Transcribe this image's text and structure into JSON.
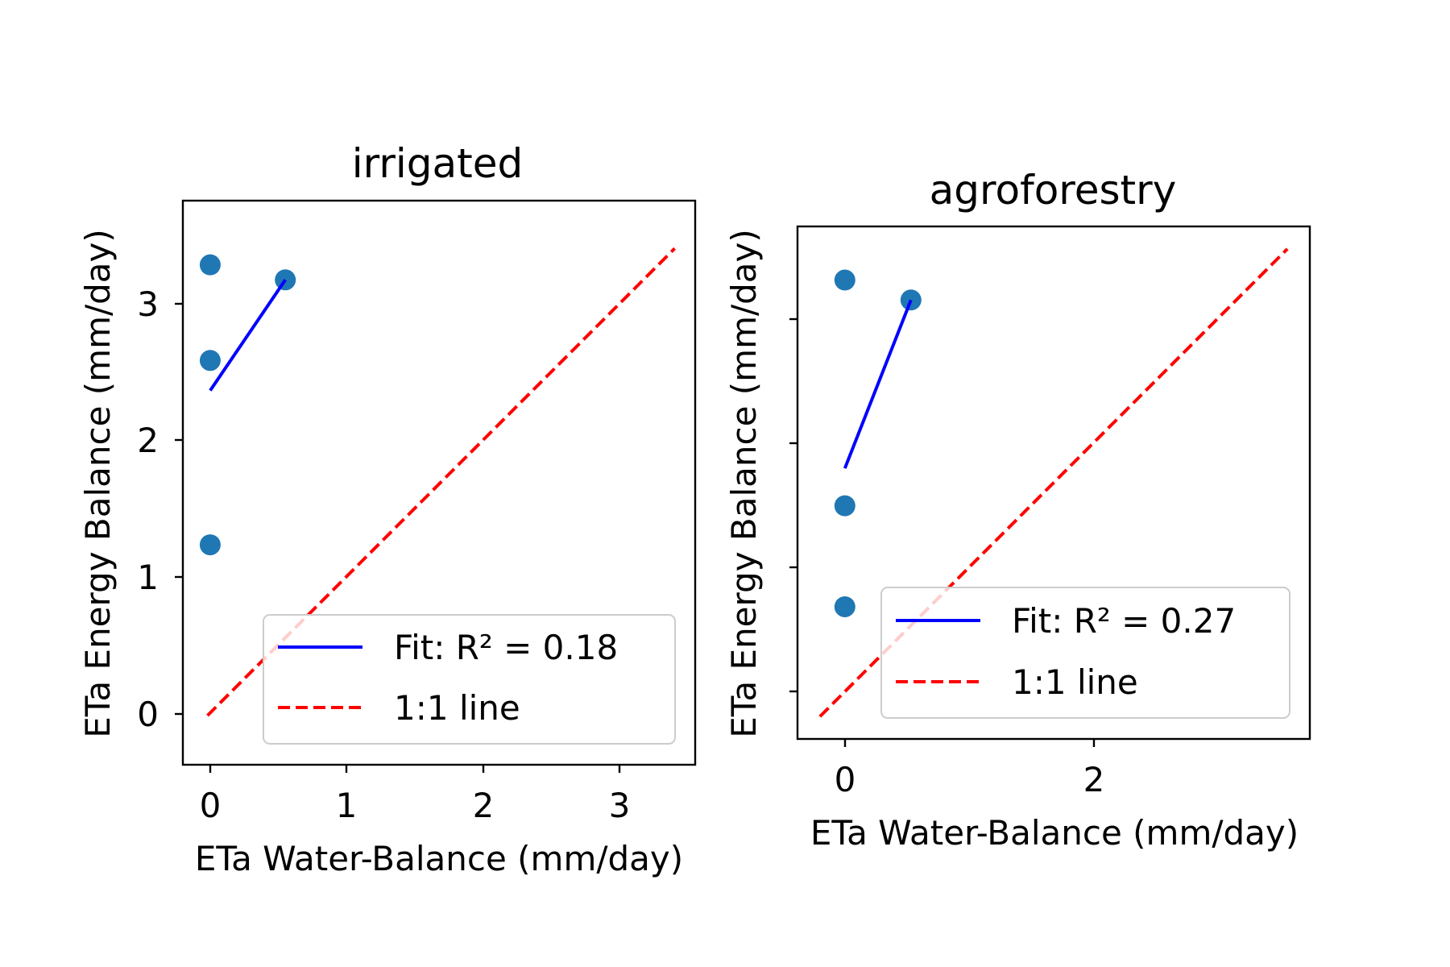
{
  "chart_data": [
    {
      "type": "scatter",
      "title": "irrigated",
      "xlabel": "ETa Water-Balance (mm/day)",
      "ylabel": "ETa Energy Balance (mm/day)",
      "xlim": [
        -0.2,
        3.55
      ],
      "ylim": [
        -0.38,
        3.75
      ],
      "xticks": [
        "0",
        "1",
        "2",
        "3"
      ],
      "yticks": [
        "0",
        "1",
        "2",
        "3"
      ],
      "grid": false,
      "legend_position": "lower right",
      "points": [
        {
          "x": 0.0,
          "y": 3.28
        },
        {
          "x": 0.0,
          "y": 2.58
        },
        {
          "x": 0.0,
          "y": 1.23
        },
        {
          "x": 0.55,
          "y": 3.17
        }
      ],
      "fit": {
        "x": [
          0.0,
          0.55
        ],
        "y": [
          2.36,
          3.17
        ]
      },
      "one_to_one": {
        "from": -0.02,
        "to": 3.4
      },
      "legend": {
        "fit_label": "Fit: R² = 0.18",
        "line_label": "1:1 line"
      },
      "colors": {
        "points": "#1f77b4",
        "fit": "#0000ff",
        "one_to_one": "#ff0000"
      }
    },
    {
      "type": "scatter",
      "title": "agroforestry",
      "xlabel": "ETa Water-Balance (mm/day)",
      "ylabel": "ETa Energy Balance (mm/day)",
      "xlim": [
        -0.38,
        3.73
      ],
      "ylim": [
        -0.38,
        3.73
      ],
      "xticks": [
        "0",
        "2"
      ],
      "yticks": [
        "",
        "",
        "",
        ""
      ],
      "grid": false,
      "legend_position": "lower right",
      "points": [
        {
          "x": 0.0,
          "y": 3.3
        },
        {
          "x": 0.0,
          "y": 1.49
        },
        {
          "x": 0.0,
          "y": 0.68
        },
        {
          "x": 0.53,
          "y": 3.14
        }
      ],
      "fit": {
        "x": [
          0.0,
          0.53
        ],
        "y": [
          1.79,
          3.14
        ]
      },
      "one_to_one": {
        "from": -0.2,
        "to": 3.55
      },
      "legend": {
        "fit_label": "Fit: R² = 0.27",
        "line_label": "1:1 line"
      },
      "colors": {
        "points": "#1f77b4",
        "fit": "#0000ff",
        "one_to_one": "#ff0000"
      }
    }
  ]
}
